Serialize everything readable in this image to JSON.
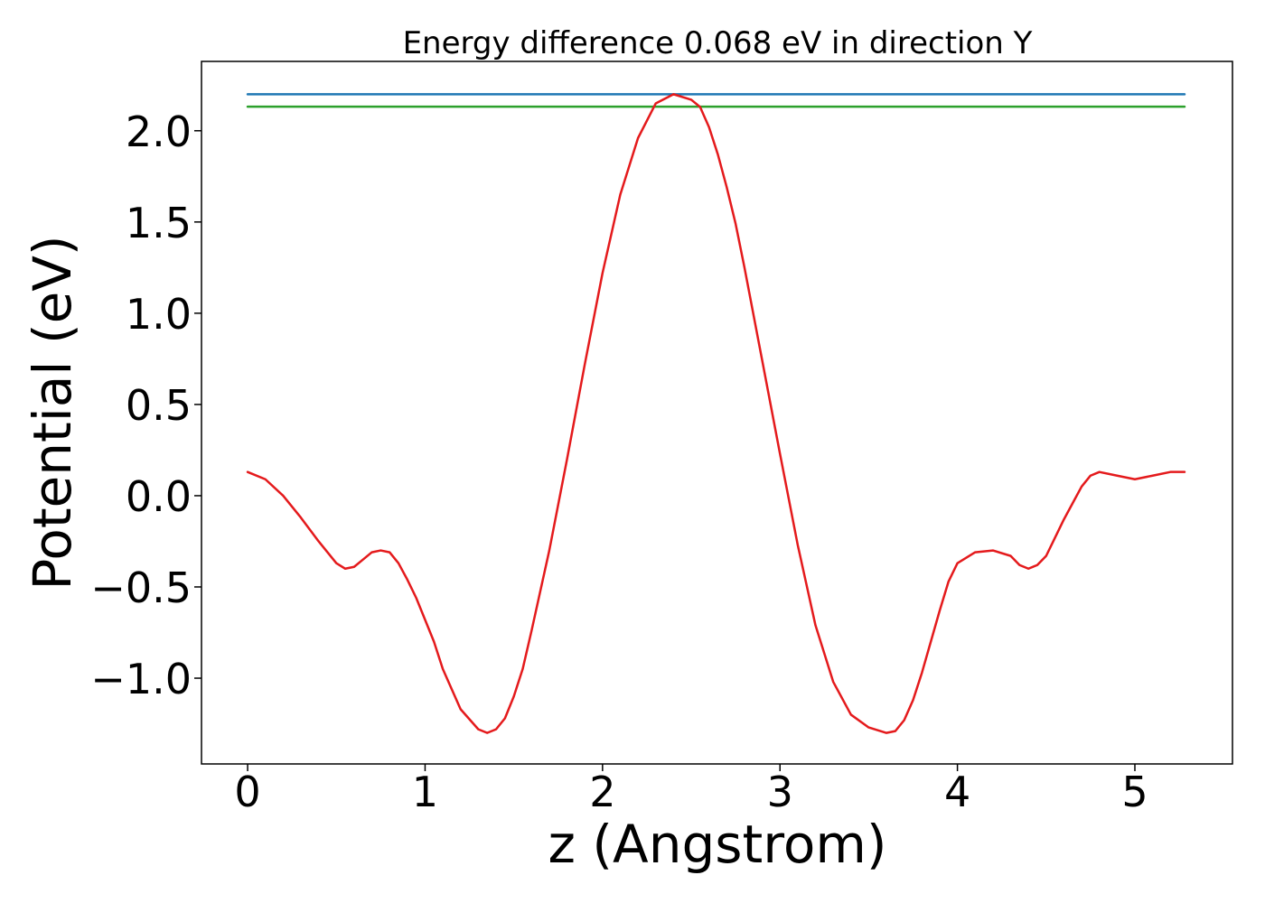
{
  "chart_data": {
    "type": "line",
    "title": "Energy difference 0.068 eV in direction Y",
    "xlabel": "z (Angstrom)",
    "ylabel": "Potential (eV)",
    "xlim": [
      -0.26,
      5.55
    ],
    "ylim": [
      -1.47,
      2.38
    ],
    "x_ticks": [
      0,
      1,
      2,
      3,
      4,
      5
    ],
    "x_tick_labels": [
      "0",
      "1",
      "2",
      "3",
      "4",
      "5"
    ],
    "y_ticks": [
      -1.0,
      -0.5,
      0.0,
      0.5,
      1.0,
      1.5,
      2.0
    ],
    "y_tick_labels": [
      "−1.0",
      "−0.5",
      "0.0",
      "0.5",
      "1.0",
      "1.5",
      "2.0"
    ],
    "grid": false,
    "legend": "none",
    "series": [
      {
        "color": "#1f77b4",
        "x": [
          0,
          5.28
        ],
        "y": [
          2.2,
          2.2
        ]
      },
      {
        "color": "#2ca02c",
        "x": [
          0,
          5.28
        ],
        "y": [
          2.132,
          2.132
        ]
      },
      {
        "color": "#e41a1c",
        "x": [
          0.0,
          0.1,
          0.2,
          0.3,
          0.4,
          0.5,
          0.55,
          0.6,
          0.65,
          0.7,
          0.75,
          0.8,
          0.85,
          0.9,
          0.95,
          1.0,
          1.05,
          1.1,
          1.2,
          1.3,
          1.35,
          1.4,
          1.45,
          1.5,
          1.55,
          1.6,
          1.65,
          1.7,
          1.8,
          1.9,
          2.0,
          2.1,
          2.2,
          2.3,
          2.4,
          2.5,
          2.55,
          2.6,
          2.65,
          2.7,
          2.75,
          2.8,
          2.9,
          3.0,
          3.1,
          3.2,
          3.3,
          3.4,
          3.5,
          3.6,
          3.65,
          3.7,
          3.75,
          3.8,
          3.85,
          3.9,
          3.95,
          4.0,
          4.1,
          4.2,
          4.3,
          4.35,
          4.4,
          4.45,
          4.5,
          4.55,
          4.6,
          4.65,
          4.7,
          4.75,
          4.8,
          4.9,
          5.0,
          5.1,
          5.2,
          5.28
        ],
        "y": [
          0.13,
          0.09,
          0.0,
          -0.12,
          -0.25,
          -0.37,
          -0.4,
          -0.39,
          -0.35,
          -0.31,
          -0.3,
          -0.31,
          -0.37,
          -0.46,
          -0.56,
          -0.68,
          -0.8,
          -0.95,
          -1.17,
          -1.28,
          -1.3,
          -1.28,
          -1.22,
          -1.1,
          -0.95,
          -0.74,
          -0.52,
          -0.3,
          0.2,
          0.72,
          1.22,
          1.65,
          1.96,
          2.15,
          2.2,
          2.17,
          2.13,
          2.02,
          1.87,
          1.69,
          1.49,
          1.25,
          0.74,
          0.23,
          -0.27,
          -0.71,
          -1.02,
          -1.2,
          -1.27,
          -1.3,
          -1.29,
          -1.23,
          -1.12,
          -0.97,
          -0.8,
          -0.63,
          -0.47,
          -0.37,
          -0.31,
          -0.3,
          -0.33,
          -0.38,
          -0.4,
          -0.38,
          -0.33,
          -0.23,
          -0.13,
          -0.04,
          0.05,
          0.11,
          0.13,
          0.11,
          0.09,
          0.11,
          0.13,
          0.13
        ]
      }
    ]
  }
}
